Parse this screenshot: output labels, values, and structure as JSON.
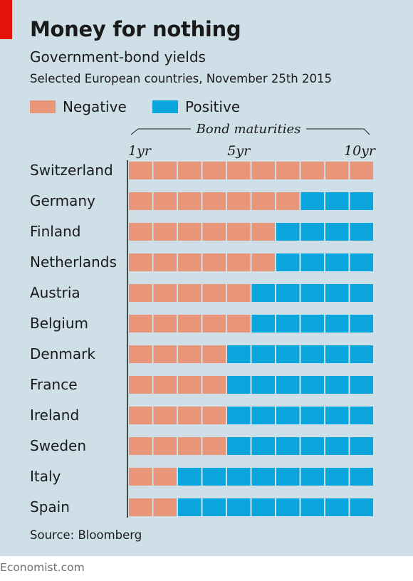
{
  "header": {
    "title": "Money for nothing",
    "subtitle": "Government-bond yields",
    "subsubtitle": "Selected European countries, November 25th 2015"
  },
  "legend": [
    {
      "label": "Negative",
      "color": "#e8957a"
    },
    {
      "label": "Positive",
      "color": "#0aa5dc"
    }
  ],
  "source": "Source: Bloomberg",
  "footer": "Economist.com",
  "chart_data": {
    "type": "heatmap",
    "x_axis_title": "Bond maturities",
    "tick_labels": [
      "1yr",
      "5yr",
      "10yr"
    ],
    "tick_positions": [
      1,
      5,
      10
    ],
    "maturities_years": [
      1,
      2,
      3,
      4,
      5,
      6,
      7,
      8,
      9,
      10
    ],
    "countries": [
      "Switzerland",
      "Germany",
      "Finland",
      "Netherlands",
      "Austria",
      "Belgium",
      "Denmark",
      "France",
      "Ireland",
      "Sweden",
      "Italy",
      "Spain"
    ],
    "negative_maturities_count": [
      10,
      7,
      6,
      6,
      5,
      5,
      4,
      4,
      4,
      4,
      2,
      2
    ],
    "colors": {
      "negative": "#e8957a",
      "positive": "#0aa5dc",
      "background": "#cfdfe8"
    }
  }
}
